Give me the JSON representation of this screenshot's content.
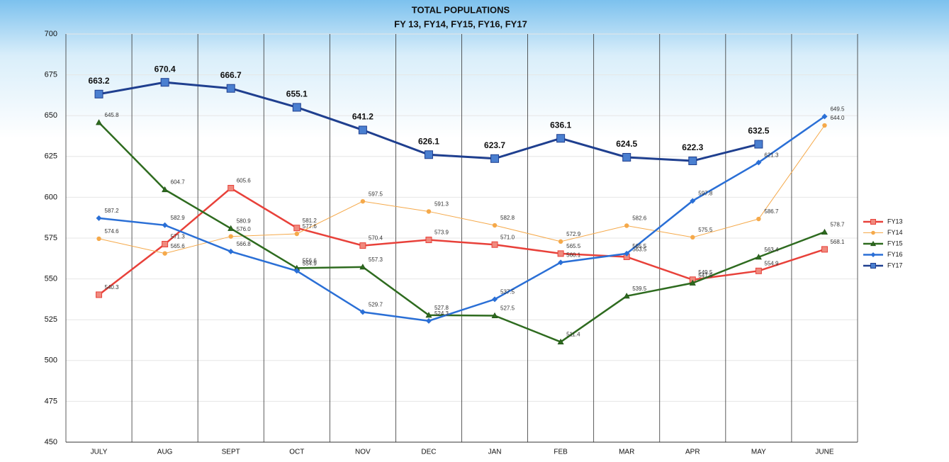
{
  "chart_data": {
    "type": "line",
    "title": "TOTAL POPULATIONS",
    "subtitle": "FY 13, FY14, FY15, FY16, FY17",
    "categories": [
      "JULY",
      "AUG",
      "SEPT",
      "OCT",
      "NOV",
      "DEC",
      "JAN",
      "FEB",
      "MAR",
      "APR",
      "MAY",
      "JUNE"
    ],
    "series": [
      {
        "name": "FY13",
        "color": "#e8413a",
        "marker": "square",
        "values": [
          540.3,
          571.3,
          605.6,
          581.2,
          570.4,
          573.9,
          571.0,
          565.5,
          563.5,
          549.5,
          554.9,
          568.1
        ],
        "value_labels": [
          "540.3",
          "571.3",
          "605.6",
          "581.2",
          "570.4",
          "573.9",
          "571.0",
          "565.5",
          "563.5",
          "549.5",
          "554.9",
          "568.1"
        ]
      },
      {
        "name": "FY14",
        "color": "#f5a94a",
        "marker": "circle",
        "values": [
          574.6,
          565.6,
          576.0,
          577.6,
          597.5,
          591.3,
          582.8,
          572.9,
          582.6,
          575.5,
          586.7,
          644.0
        ],
        "value_labels": [
          "574.6",
          "565.6",
          "576.0",
          "577.6",
          "597.5",
          "591.3",
          "582.8",
          "572.9",
          "582.6",
          "575.5",
          "586.7",
          "644.0"
        ]
      },
      {
        "name": "FY15",
        "color": "#2e6b1f",
        "marker": "triangle",
        "values": [
          645.8,
          604.7,
          580.9,
          556.6,
          557.3,
          527.8,
          527.5,
          511.4,
          539.5,
          547.5,
          563.4,
          578.7
        ],
        "value_labels": [
          "645.8",
          "604.7",
          "580.9",
          "556.6",
          "557.3",
          "527.8",
          "527.5",
          "511.4",
          "539.5",
          "547.5",
          "563.4",
          "578.7"
        ]
      },
      {
        "name": "FY16",
        "color": "#2a6fd6",
        "marker": "diamond",
        "values": [
          587.2,
          582.9,
          566.8,
          554.9,
          529.7,
          524.3,
          537.5,
          560.1,
          565.5,
          597.8,
          621.3,
          649.5
        ],
        "value_labels": [
          "587.2",
          "582.9",
          "566.8",
          "554.9",
          "529.7",
          "524.3",
          "537.5",
          "560.1",
          "565.5",
          "597.8",
          "621.3",
          "649.5"
        ]
      },
      {
        "name": "FY17",
        "color": "#1f3f8f",
        "marker": "square",
        "values": [
          663.2,
          670.4,
          666.7,
          655.1,
          641.2,
          626.1,
          623.7,
          636.1,
          624.5,
          622.3,
          632.5,
          null
        ],
        "value_labels": [
          "663.2",
          "670.4",
          "666.7",
          "655.1",
          "641.2",
          "626.1",
          "623.7",
          "636.1",
          "624.5",
          "622.3",
          "632.5",
          null
        ]
      }
    ],
    "ylim": [
      450,
      700
    ],
    "yticks": [
      450,
      475,
      500,
      525,
      550,
      575,
      600,
      625,
      650,
      675,
      700
    ],
    "grid": true,
    "legend": "right"
  }
}
